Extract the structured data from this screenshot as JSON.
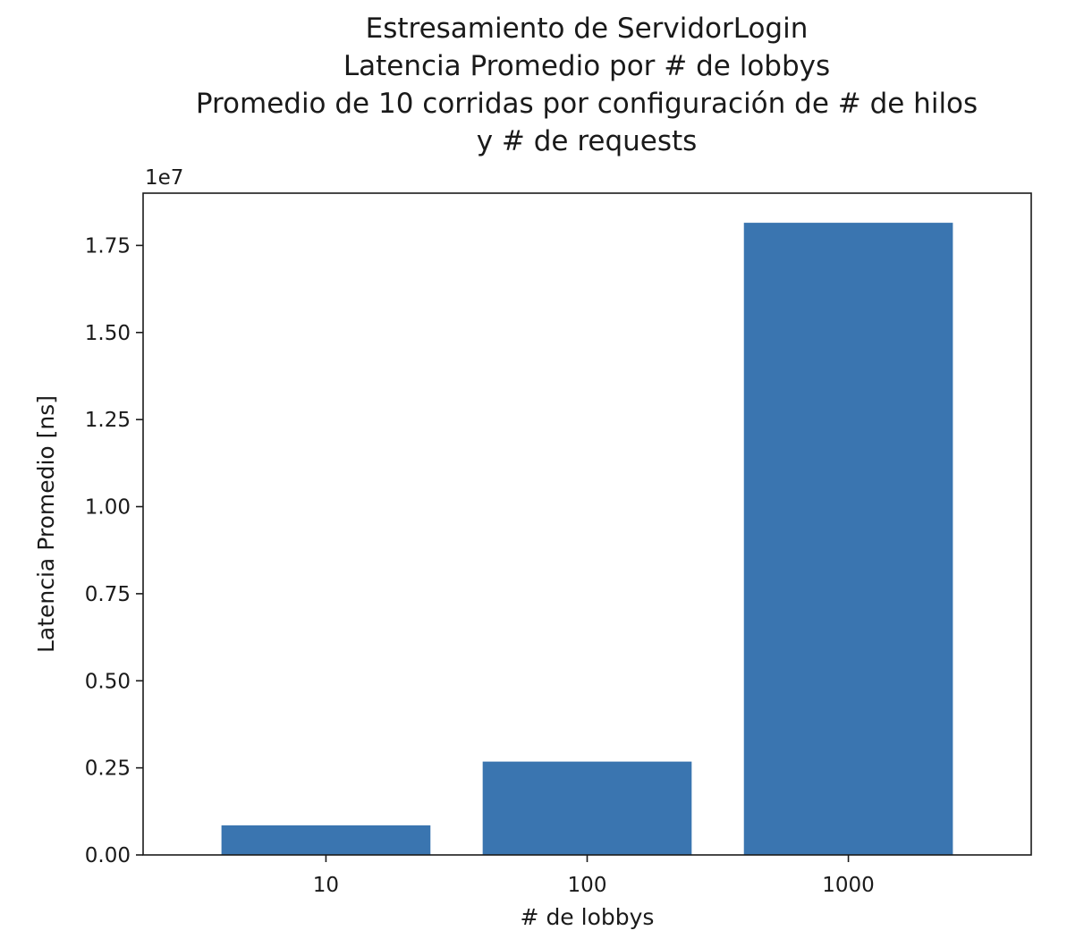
{
  "chart_data": {
    "type": "bar",
    "title": [
      "Estresamiento de ServidorLogin",
      "Latencia Promedio por # de lobbys",
      "Promedio de 10 corridas por configuración de # de hilos",
      "y # de requests"
    ],
    "xlabel": "# de lobbys",
    "ylabel": "Latencia Promedio [ns]",
    "categories": [
      "10",
      "100",
      "1000"
    ],
    "values": [
      850000,
      2680000,
      18150000
    ],
    "ylim": [
      0,
      19000000
    ],
    "y_offset_text": "1e7",
    "y_ticks": [
      0,
      2500000,
      5000000,
      7500000,
      10000000,
      12500000,
      15000000,
      17500000
    ],
    "y_tick_labels": [
      "0.00",
      "0.25",
      "0.50",
      "0.75",
      "1.00",
      "1.25",
      "1.50",
      "1.75"
    ],
    "bar_color": "#3a75b0",
    "grid": false,
    "legend": "none"
  }
}
